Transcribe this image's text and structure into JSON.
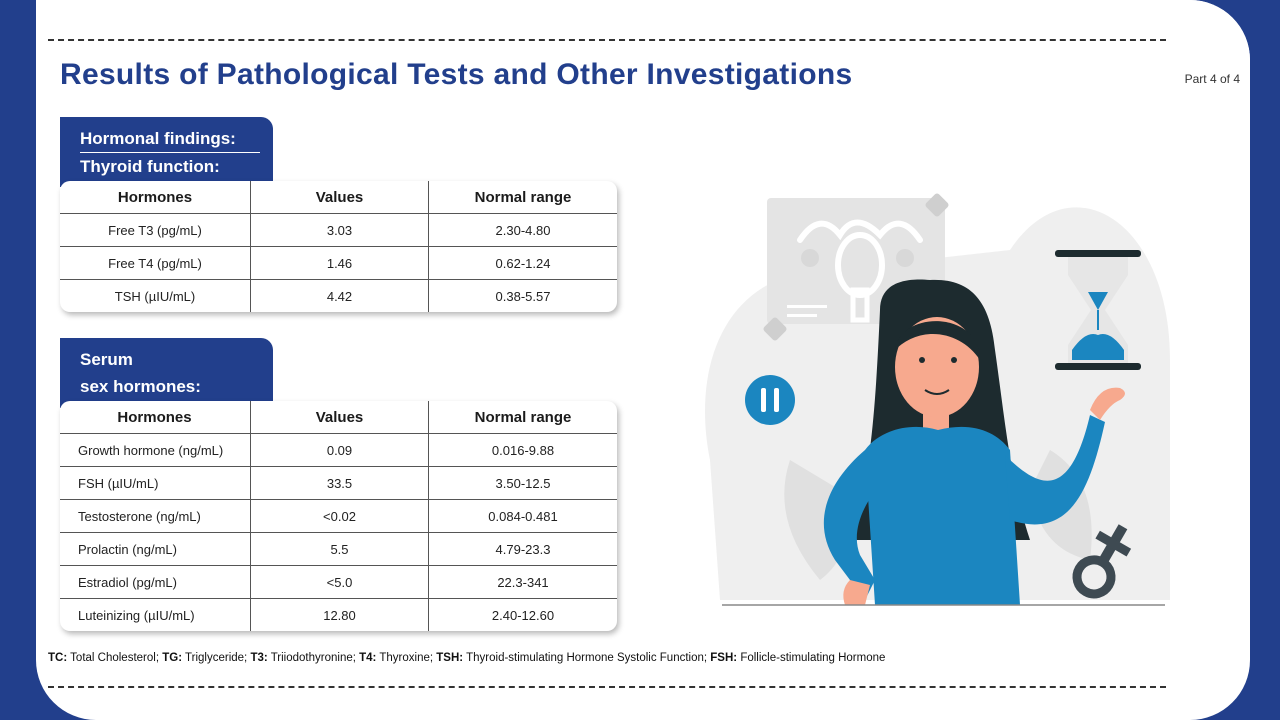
{
  "title": "Results of Pathological Tests and Other Investigations",
  "part": "Part 4 of 4",
  "thyroid": {
    "tab_line1": "Hormonal findings:",
    "tab_line2": "Thyroid function:",
    "headers": [
      "Hormones",
      "Values",
      "Normal range"
    ],
    "rows": [
      {
        "hormone": "Free T3 (pg/mL)",
        "value": "3.03",
        "range": "2.30-4.80"
      },
      {
        "hormone": "Free T4 (pg/mL)",
        "value": "1.46",
        "range": "0.62-1.24"
      },
      {
        "hormone": "TSH (µIU/mL)",
        "value": "4.42",
        "range": "0.38-5.57"
      }
    ]
  },
  "serum": {
    "tab_line1": "Serum",
    "tab_line2": "sex hormones:",
    "headers": [
      "Hormones",
      "Values",
      "Normal range"
    ],
    "rows": [
      {
        "hormone": "Growth hormone (ng/mL)",
        "value": "0.09",
        "range": "0.016-9.88"
      },
      {
        "hormone": "FSH (µIU/mL)",
        "value": "33.5",
        "range": "3.50-12.5"
      },
      {
        "hormone": "Testosterone (ng/mL)",
        "value": "<0.02",
        "range": "0.084-0.481"
      },
      {
        "hormone": "Prolactin (ng/mL)",
        "value": "5.5",
        "range": "4.79-23.3"
      },
      {
        "hormone": "Estradiol (pg/mL)",
        "value": "<5.0",
        "range": "22.3-341"
      },
      {
        "hormone": "Luteinizing (µIU/mL)",
        "value": "12.80",
        "range": "2.40-12.60"
      }
    ]
  },
  "footnote": [
    {
      "abbr": "TC:",
      "text": "Total Cholesterol;"
    },
    {
      "abbr": "TG:",
      "text": "Triglyceride;"
    },
    {
      "abbr": "T3:",
      "text": "Triiodothyronine;"
    },
    {
      "abbr": "T4:",
      "text": "Thyroxine;"
    },
    {
      "abbr": "TSH:",
      "text": "Thyroid-stimulating Hormone Systolic Function;"
    },
    {
      "abbr": "FSH:",
      "text": "Follicle-stimulating Hormone"
    }
  ],
  "colors": {
    "brand_blue": "#223f8c",
    "shirt_blue": "#1b86c0",
    "hair": "#1d2b2f",
    "skin": "#f7a98e",
    "illustration_gray": "#e9e9e9"
  }
}
